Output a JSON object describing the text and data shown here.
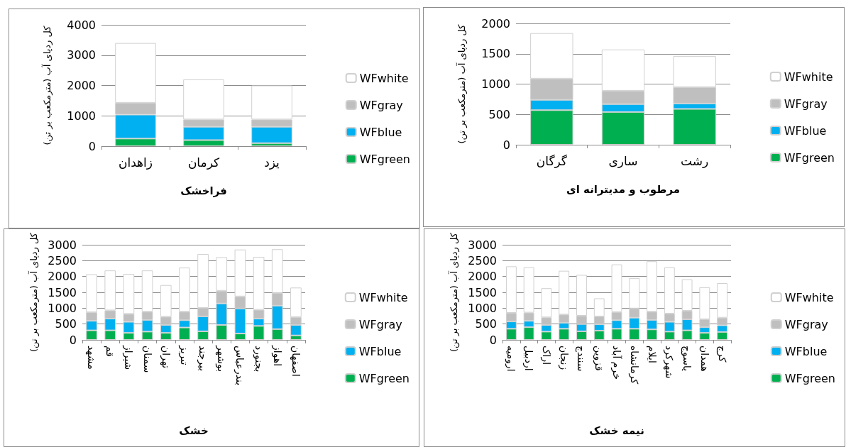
{
  "chart_data": [
    {
      "type": "bar",
      "stacked": true,
      "xlabel": "فراخشک",
      "ylabel": "کل ردپای آب (مترمکعب بر تن)",
      "categories": [
        "زاهدان",
        "کرمان",
        "یزد"
      ],
      "ylim": [
        0,
        4000
      ],
      "yticks": [
        0,
        1000,
        2000,
        3000,
        4000
      ],
      "grid": "y",
      "legend": "right",
      "series": [
        {
          "name": "WFgreen",
          "color": "#00b050",
          "values": [
            250,
            200,
            100
          ]
        },
        {
          "name": "WFblue",
          "color": "#00b0f0",
          "values": [
            790,
            440,
            540
          ]
        },
        {
          "name": "WFgray",
          "color": "#bfbfbf",
          "values": [
            390,
            240,
            240
          ]
        },
        {
          "name": "WFwhite",
          "color": "#ffffff",
          "values": [
            1970,
            1320,
            1120
          ]
        }
      ]
    },
    {
      "type": "bar",
      "stacked": true,
      "xlabel": "مرطوب و مدیترانه ای",
      "ylabel": "کل ردپای آب (مترمکعب بر تن)",
      "categories": [
        "گرگان",
        "ساری",
        "رشت"
      ],
      "ylim": [
        0,
        2000
      ],
      "yticks": [
        0,
        500,
        1000,
        1500,
        2000
      ],
      "grid": "y",
      "legend": "right",
      "series": [
        {
          "name": "WFgreen",
          "color": "#00b050",
          "values": [
            570,
            540,
            590
          ]
        },
        {
          "name": "WFblue",
          "color": "#00b0f0",
          "values": [
            170,
            130,
            90
          ]
        },
        {
          "name": "WFgray",
          "color": "#bfbfbf",
          "values": [
            350,
            220,
            270
          ]
        },
        {
          "name": "WFwhite",
          "color": "#ffffff",
          "values": [
            750,
            680,
            510
          ]
        }
      ]
    },
    {
      "type": "bar",
      "stacked": true,
      "xlabel": "خشک",
      "ylabel": "کل ردپای آب (مترمکعب بر تن)",
      "categories": [
        "مشهد",
        "قم",
        "شیراز",
        "سمنان",
        "تهران",
        "تبریز",
        "بیرجند",
        "بوشهر",
        "بندرعباس",
        "بجنورد",
        "اهواز",
        "اصفهان"
      ],
      "ylim": [
        0,
        3000
      ],
      "yticks": [
        0,
        500,
        1000,
        1500,
        2000,
        2500,
        3000
      ],
      "grid": "y",
      "legend": "right",
      "series": [
        {
          "name": "WFgreen",
          "color": "#00b050",
          "values": [
            300,
            300,
            220,
            260,
            220,
            390,
            270,
            470,
            200,
            440,
            340,
            140
          ]
        },
        {
          "name": "WFblue",
          "color": "#00b0f0",
          "values": [
            300,
            370,
            350,
            370,
            250,
            230,
            470,
            680,
            790,
            230,
            740,
            330
          ]
        },
        {
          "name": "WFgray",
          "color": "#bfbfbf",
          "values": [
            270,
            260,
            250,
            260,
            260,
            270,
            270,
            400,
            380,
            280,
            400,
            250
          ]
        },
        {
          "name": "WFwhite",
          "color": "#ffffff",
          "values": [
            1200,
            1260,
            1260,
            1300,
            1000,
            1390,
            1700,
            1060,
            1480,
            1670,
            1380,
            930
          ]
        }
      ]
    },
    {
      "type": "bar",
      "stacked": true,
      "xlabel": "نیمه خشک",
      "ylabel": "کل ردپای آب (مترمکعب بر تن)",
      "categories": [
        "ارومیه",
        "اردبیل",
        "اراک",
        "زنجان",
        "سنندج",
        "قزوین",
        "خرم آباد",
        "کرمانشاه",
        "ایلام",
        "شهرکرد",
        "یاسوج",
        "همدان",
        "کرج"
      ],
      "ylim": [
        0,
        3000
      ],
      "yticks": [
        0,
        500,
        1000,
        1500,
        2000,
        2500,
        3000
      ],
      "grid": "y",
      "legend": "right",
      "series": [
        {
          "name": "WFgreen",
          "color": "#00b050",
          "values": [
            350,
            400,
            260,
            350,
            270,
            290,
            350,
            350,
            330,
            260,
            300,
            220,
            250
          ]
        },
        {
          "name": "WFblue",
          "color": "#00b0f0",
          "values": [
            230,
            200,
            210,
            190,
            230,
            200,
            270,
            350,
            300,
            310,
            350,
            180,
            210
          ]
        },
        {
          "name": "WFgray",
          "color": "#bfbfbf",
          "values": [
            270,
            260,
            240,
            260,
            260,
            250,
            260,
            290,
            260,
            260,
            270,
            250,
            240
          ]
        },
        {
          "name": "WFwhite",
          "color": "#ffffff",
          "values": [
            1470,
            1430,
            920,
            1380,
            1290,
            570,
            1500,
            960,
            1590,
            1460,
            990,
            1010,
            1090
          ]
        }
      ]
    }
  ]
}
